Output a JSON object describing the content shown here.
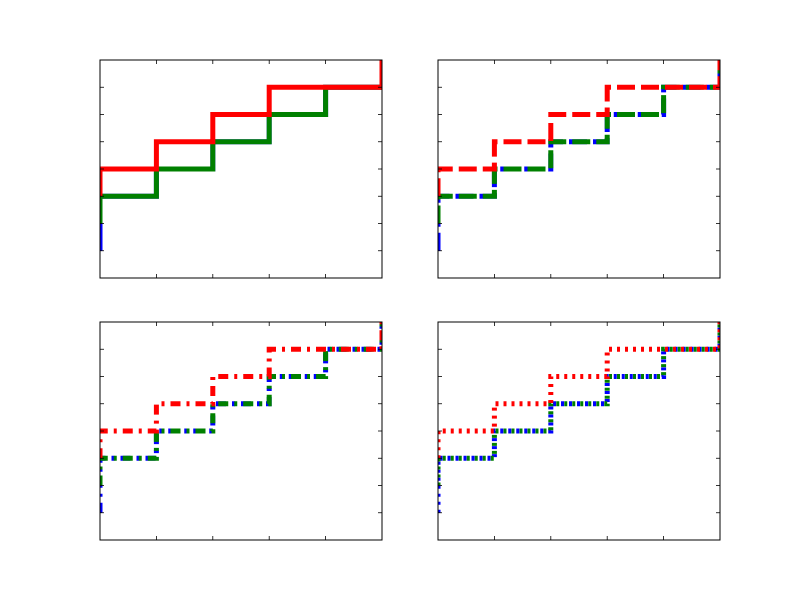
{
  "chart_data": [
    {
      "type": "line",
      "step": "pre",
      "linestyle": "solid",
      "xlim": [
        0,
        5
      ],
      "ylim": [
        0,
        8
      ],
      "x": [
        0,
        0,
        1,
        2,
        3,
        4,
        5,
        5
      ],
      "series": [
        {
          "values": [
            1,
            2,
            3,
            4,
            5,
            6,
            7,
            8
          ],
          "color": "#0000ff"
        },
        {
          "values": [
            2,
            2,
            3,
            4,
            5,
            6,
            7,
            8
          ],
          "color": "#008000"
        },
        {
          "values": [
            3,
            3,
            4,
            5,
            6,
            7,
            7,
            8
          ],
          "color": "#ff0000"
        }
      ]
    },
    {
      "type": "line",
      "step": "pre",
      "linestyle": "dashed",
      "xlim": [
        0,
        5
      ],
      "ylim": [
        0,
        8
      ],
      "x": [
        0,
        0,
        1,
        2,
        3,
        4,
        5,
        5
      ],
      "series": [
        {
          "values": [
            1,
            2,
            3,
            4,
            5,
            6,
            7,
            8
          ],
          "color": "#0000ff"
        },
        {
          "values": [
            2,
            2,
            3,
            4,
            5,
            6,
            7,
            8
          ],
          "color": "#008000"
        },
        {
          "values": [
            3,
            3,
            4,
            5,
            6,
            7,
            7,
            8
          ],
          "color": "#ff0000"
        }
      ]
    },
    {
      "type": "line",
      "step": "pre",
      "linestyle": "dashdot",
      "xlim": [
        0,
        5
      ],
      "ylim": [
        0,
        8
      ],
      "x": [
        0,
        0,
        1,
        2,
        3,
        4,
        5,
        5
      ],
      "series": [
        {
          "values": [
            1,
            2,
            3,
            4,
            5,
            6,
            7,
            8
          ],
          "color": "#0000ff"
        },
        {
          "values": [
            2,
            2,
            3,
            4,
            5,
            6,
            7,
            8
          ],
          "color": "#008000"
        },
        {
          "values": [
            3,
            3,
            4,
            5,
            6,
            7,
            7,
            8
          ],
          "color": "#ff0000"
        }
      ]
    },
    {
      "type": "line",
      "step": "pre",
      "linestyle": "dotted",
      "xlim": [
        0,
        5
      ],
      "ylim": [
        0,
        8
      ],
      "x": [
        0,
        0,
        1,
        2,
        3,
        4,
        5,
        5
      ],
      "series": [
        {
          "values": [
            1,
            2,
            3,
            4,
            5,
            6,
            7,
            8
          ],
          "color": "#0000ff"
        },
        {
          "values": [
            2,
            2,
            3,
            4,
            5,
            6,
            7,
            8
          ],
          "color": "#008000"
        },
        {
          "values": [
            3,
            3,
            4,
            5,
            6,
            7,
            7,
            8
          ],
          "color": "#ff0000"
        }
      ]
    }
  ]
}
